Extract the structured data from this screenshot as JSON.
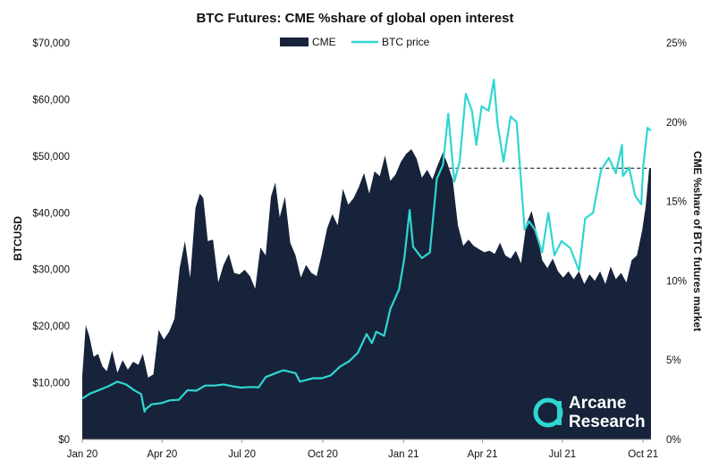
{
  "chart_data": {
    "type": "area",
    "title": "BTC Futures: CME %share of global open interest",
    "ylabel_left": "BTCUSD",
    "ylabel_right": "CME %share of BTC futures market",
    "x_ticks": [
      "Jan 20",
      "Apr 20",
      "Jul 20",
      "Oct 20",
      "Jan 21",
      "Apr 21",
      "Jul 21",
      "Oct 21"
    ],
    "y_left_ticks": [
      "$0",
      "$10,000",
      "$20,000",
      "$30,000",
      "$40,000",
      "$50,000",
      "$60,000",
      "$70,000"
    ],
    "y_right_ticks": [
      "0%",
      "5%",
      "10%",
      "15%",
      "20%",
      "25%"
    ],
    "y_left_range": [
      0,
      70000
    ],
    "y_right_range": [
      0,
      25
    ],
    "x_range": [
      "2020-01-01",
      "2021-10-10"
    ],
    "legend_position": "top-center",
    "grid": false,
    "colors": {
      "cme": "#17233a",
      "btc": "#2fd6d2",
      "dashed_line": "#17233a"
    },
    "reference_line": {
      "axis": "right",
      "value": 17.1,
      "from": "2021-02-22",
      "to": "2021-10-08",
      "style": "dashed"
    },
    "series": [
      {
        "name": "CME",
        "axis": "right",
        "kind": "area",
        "points": [
          [
            "2020-01-01",
            4.0
          ],
          [
            "2020-01-05",
            7.2
          ],
          [
            "2020-01-09",
            6.5
          ],
          [
            "2020-01-14",
            5.2
          ],
          [
            "2020-01-19",
            5.4
          ],
          [
            "2020-01-24",
            4.6
          ],
          [
            "2020-01-29",
            4.3
          ],
          [
            "2020-02-04",
            5.6
          ],
          [
            "2020-02-10",
            4.2
          ],
          [
            "2020-02-16",
            5.0
          ],
          [
            "2020-02-22",
            4.4
          ],
          [
            "2020-02-28",
            4.9
          ],
          [
            "2020-03-05",
            4.7
          ],
          [
            "2020-03-10",
            5.4
          ],
          [
            "2020-03-16",
            3.9
          ],
          [
            "2020-03-22",
            4.1
          ],
          [
            "2020-03-28",
            6.9
          ],
          [
            "2020-04-03",
            6.3
          ],
          [
            "2020-04-09",
            6.8
          ],
          [
            "2020-04-15",
            7.6
          ],
          [
            "2020-04-21",
            10.8
          ],
          [
            "2020-04-27",
            12.5
          ],
          [
            "2020-05-03",
            10.2
          ],
          [
            "2020-05-09",
            14.6
          ],
          [
            "2020-05-14",
            15.5
          ],
          [
            "2020-05-18",
            15.2
          ],
          [
            "2020-05-23",
            12.5
          ],
          [
            "2020-05-29",
            12.6
          ],
          [
            "2020-06-04",
            9.9
          ],
          [
            "2020-06-10",
            11.0
          ],
          [
            "2020-06-16",
            11.7
          ],
          [
            "2020-06-22",
            10.5
          ],
          [
            "2020-06-28",
            10.4
          ],
          [
            "2020-07-04",
            10.7
          ],
          [
            "2020-07-10",
            10.3
          ],
          [
            "2020-07-16",
            9.5
          ],
          [
            "2020-07-22",
            12.1
          ],
          [
            "2020-07-28",
            11.6
          ],
          [
            "2020-08-03",
            15.3
          ],
          [
            "2020-08-08",
            16.2
          ],
          [
            "2020-08-13",
            14.0
          ],
          [
            "2020-08-19",
            15.3
          ],
          [
            "2020-08-25",
            12.4
          ],
          [
            "2020-08-31",
            11.6
          ],
          [
            "2020-09-06",
            10.2
          ],
          [
            "2020-09-12",
            11.0
          ],
          [
            "2020-09-18",
            10.5
          ],
          [
            "2020-09-24",
            10.3
          ],
          [
            "2020-09-30",
            11.7
          ],
          [
            "2020-10-06",
            13.3
          ],
          [
            "2020-10-12",
            14.2
          ],
          [
            "2020-10-18",
            13.5
          ],
          [
            "2020-10-24",
            15.8
          ],
          [
            "2020-10-30",
            14.8
          ],
          [
            "2020-11-05",
            15.2
          ],
          [
            "2020-11-11",
            15.9
          ],
          [
            "2020-11-17",
            16.8
          ],
          [
            "2020-11-23",
            15.5
          ],
          [
            "2020-11-29",
            16.9
          ],
          [
            "2020-12-05",
            16.6
          ],
          [
            "2020-12-11",
            17.9
          ],
          [
            "2020-12-17",
            16.3
          ],
          [
            "2020-12-23",
            16.7
          ],
          [
            "2020-12-29",
            17.5
          ],
          [
            "2021-01-04",
            18.0
          ],
          [
            "2021-01-10",
            18.3
          ],
          [
            "2021-01-16",
            17.7
          ],
          [
            "2021-01-22",
            16.5
          ],
          [
            "2021-01-28",
            17.0
          ],
          [
            "2021-02-03",
            16.4
          ],
          [
            "2021-02-09",
            17.3
          ],
          [
            "2021-02-15",
            18.1
          ],
          [
            "2021-02-20",
            17.4
          ],
          [
            "2021-02-26",
            16.4
          ],
          [
            "2021-03-04",
            13.5
          ],
          [
            "2021-03-10",
            12.2
          ],
          [
            "2021-03-16",
            12.6
          ],
          [
            "2021-03-22",
            12.2
          ],
          [
            "2021-03-28",
            12.0
          ],
          [
            "2021-04-03",
            11.8
          ],
          [
            "2021-04-09",
            11.9
          ],
          [
            "2021-04-15",
            11.7
          ],
          [
            "2021-04-21",
            12.4
          ],
          [
            "2021-04-27",
            11.6
          ],
          [
            "2021-05-03",
            11.4
          ],
          [
            "2021-05-09",
            11.9
          ],
          [
            "2021-05-15",
            11.1
          ],
          [
            "2021-05-21",
            13.6
          ],
          [
            "2021-05-27",
            14.4
          ],
          [
            "2021-06-02",
            13.0
          ],
          [
            "2021-06-08",
            11.3
          ],
          [
            "2021-06-14",
            10.8
          ],
          [
            "2021-06-20",
            11.4
          ],
          [
            "2021-06-26",
            10.6
          ],
          [
            "2021-07-02",
            10.2
          ],
          [
            "2021-07-08",
            10.6
          ],
          [
            "2021-07-14",
            10.1
          ],
          [
            "2021-07-20",
            10.6
          ],
          [
            "2021-07-26",
            9.8
          ],
          [
            "2021-08-01",
            10.4
          ],
          [
            "2021-08-07",
            10.0
          ],
          [
            "2021-08-13",
            10.6
          ],
          [
            "2021-08-19",
            9.8
          ],
          [
            "2021-08-25",
            10.9
          ],
          [
            "2021-08-31",
            10.1
          ],
          [
            "2021-09-06",
            10.5
          ],
          [
            "2021-09-12",
            9.9
          ],
          [
            "2021-09-18",
            11.3
          ],
          [
            "2021-09-24",
            11.6
          ],
          [
            "2021-09-30",
            13.2
          ],
          [
            "2021-10-04",
            14.7
          ],
          [
            "2021-10-08",
            17.1
          ],
          [
            "2021-10-10",
            17.1
          ]
        ]
      },
      {
        "name": "BTC price",
        "axis": "left",
        "kind": "line",
        "points": [
          [
            "2020-01-01",
            7200
          ],
          [
            "2020-01-10",
            8100
          ],
          [
            "2020-01-20",
            8700
          ],
          [
            "2020-01-31",
            9400
          ],
          [
            "2020-02-10",
            10200
          ],
          [
            "2020-02-20",
            9700
          ],
          [
            "2020-02-29",
            8700
          ],
          [
            "2020-03-08",
            8000
          ],
          [
            "2020-03-12",
            4900
          ],
          [
            "2020-03-13",
            5300
          ],
          [
            "2020-03-20",
            6200
          ],
          [
            "2020-03-31",
            6400
          ],
          [
            "2020-04-10",
            6900
          ],
          [
            "2020-04-20",
            7000
          ],
          [
            "2020-04-30",
            8700
          ],
          [
            "2020-05-10",
            8600
          ],
          [
            "2020-05-20",
            9500
          ],
          [
            "2020-05-31",
            9500
          ],
          [
            "2020-06-10",
            9700
          ],
          [
            "2020-06-20",
            9400
          ],
          [
            "2020-06-30",
            9150
          ],
          [
            "2020-07-10",
            9250
          ],
          [
            "2020-07-20",
            9200
          ],
          [
            "2020-07-28",
            11000
          ],
          [
            "2020-08-10",
            11800
          ],
          [
            "2020-08-17",
            12200
          ],
          [
            "2020-08-31",
            11700
          ],
          [
            "2020-09-05",
            10200
          ],
          [
            "2020-09-20",
            10800
          ],
          [
            "2020-09-30",
            10800
          ],
          [
            "2020-10-10",
            11300
          ],
          [
            "2020-10-21",
            12900
          ],
          [
            "2020-10-31",
            13800
          ],
          [
            "2020-11-10",
            15300
          ],
          [
            "2020-11-20",
            18600
          ],
          [
            "2020-11-26",
            17000
          ],
          [
            "2020-12-01",
            19000
          ],
          [
            "2020-12-10",
            18300
          ],
          [
            "2020-12-17",
            23000
          ],
          [
            "2020-12-27",
            26500
          ],
          [
            "2021-01-02",
            32000
          ],
          [
            "2021-01-08",
            40500
          ],
          [
            "2021-01-12",
            34000
          ],
          [
            "2021-01-22",
            32000
          ],
          [
            "2021-01-31",
            33000
          ],
          [
            "2021-02-08",
            46000
          ],
          [
            "2021-02-15",
            48500
          ],
          [
            "2021-02-21",
            57500
          ],
          [
            "2021-02-28",
            45500
          ],
          [
            "2021-03-06",
            49000
          ],
          [
            "2021-03-13",
            61000
          ],
          [
            "2021-03-20",
            58000
          ],
          [
            "2021-03-25",
            52000
          ],
          [
            "2021-03-31",
            58800
          ],
          [
            "2021-04-08",
            58000
          ],
          [
            "2021-04-14",
            63500
          ],
          [
            "2021-04-18",
            56000
          ],
          [
            "2021-04-25",
            49000
          ],
          [
            "2021-05-03",
            57000
          ],
          [
            "2021-05-10",
            56000
          ],
          [
            "2021-05-13",
            49500
          ],
          [
            "2021-05-19",
            37000
          ],
          [
            "2021-05-24",
            38500
          ],
          [
            "2021-05-31",
            37000
          ],
          [
            "2021-06-08",
            33000
          ],
          [
            "2021-06-15",
            40000
          ],
          [
            "2021-06-22",
            32500
          ],
          [
            "2021-06-30",
            35000
          ],
          [
            "2021-07-10",
            33800
          ],
          [
            "2021-07-20",
            29800
          ],
          [
            "2021-07-27",
            39000
          ],
          [
            "2021-08-05",
            40000
          ],
          [
            "2021-08-14",
            47500
          ],
          [
            "2021-08-23",
            49700
          ],
          [
            "2021-08-31",
            47000
          ],
          [
            "2021-09-07",
            52000
          ],
          [
            "2021-09-08",
            46500
          ],
          [
            "2021-09-15",
            48000
          ],
          [
            "2021-09-22",
            43000
          ],
          [
            "2021-09-29",
            41500
          ],
          [
            "2021-10-01",
            48000
          ],
          [
            "2021-10-06",
            55000
          ],
          [
            "2021-10-10",
            54500
          ]
        ]
      }
    ]
  },
  "logo": {
    "line1": "Arcane",
    "line2": "Research"
  }
}
